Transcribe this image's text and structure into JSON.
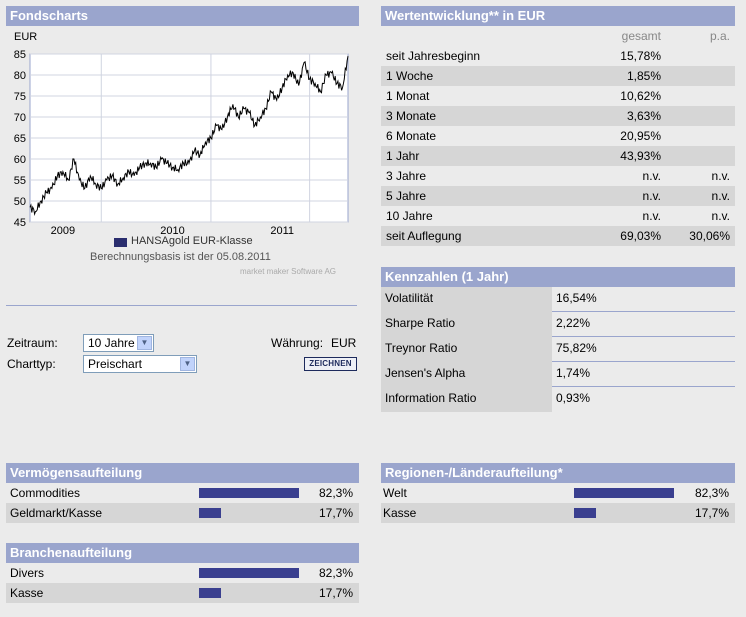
{
  "fondscharts": {
    "title": "Fondscharts",
    "currency_label": "EUR",
    "legend": "HANSAgold EUR-Klasse",
    "basis": "Berechnungsbasis ist der 05.08.2011",
    "credit": "market maker Software AG"
  },
  "chart_data": {
    "type": "line",
    "title": "Fondscharts",
    "ylabel": "EUR",
    "ylim": [
      45,
      85
    ],
    "yticks": [
      45,
      50,
      55,
      60,
      65,
      70,
      75,
      80,
      85
    ],
    "xlim": [
      2008.7,
      2011.6
    ],
    "xticks": [
      {
        "label": "2009",
        "x": 2009.0
      },
      {
        "label": "2010",
        "x": 2010.0
      },
      {
        "label": "2011",
        "x": 2011.0
      }
    ],
    "series": [
      {
        "name": "HANSAgold EUR-Klasse",
        "color": "#000000",
        "x": [
          2008.7,
          2008.75,
          2008.8,
          2008.85,
          2008.9,
          2008.95,
          2009.0,
          2009.05,
          2009.1,
          2009.15,
          2009.2,
          2009.25,
          2009.3,
          2009.35,
          2009.4,
          2009.45,
          2009.5,
          2009.55,
          2009.6,
          2009.65,
          2009.7,
          2009.75,
          2009.8,
          2009.85,
          2009.9,
          2009.95,
          2010.0,
          2010.05,
          2010.1,
          2010.15,
          2010.2,
          2010.25,
          2010.3,
          2010.35,
          2010.4,
          2010.45,
          2010.5,
          2010.55,
          2010.6,
          2010.65,
          2010.7,
          2010.75,
          2010.8,
          2010.85,
          2010.9,
          2010.95,
          2011.0,
          2011.05,
          2011.1,
          2011.15,
          2011.2,
          2011.25,
          2011.3,
          2011.35,
          2011.4,
          2011.45,
          2011.5,
          2011.55,
          2011.6
        ],
        "values": [
          48.5,
          47.5,
          50,
          52,
          53,
          56,
          57,
          55,
          60,
          55,
          53,
          56,
          54,
          53,
          55,
          56,
          54,
          55.5,
          57,
          56,
          58,
          59,
          59,
          58,
          60,
          59,
          58,
          57.5,
          59,
          59,
          62,
          61,
          64,
          65,
          68,
          67,
          70,
          73,
          70,
          72,
          71,
          68,
          70,
          72,
          76,
          74,
          77,
          80,
          80.5,
          77.5,
          83,
          79,
          78,
          76,
          80,
          80.5,
          78,
          77,
          84.5
        ]
      }
    ]
  },
  "form": {
    "zeitraum_label": "Zeitraum:",
    "zeitraum_value": "10 Jahre",
    "waehrung_label": "Währung:",
    "waehrung_value": "EUR",
    "charttyp_label": "Charttyp:",
    "charttyp_value": "Preischart",
    "draw_button": "ZEICHNEN"
  },
  "wertentwicklung": {
    "title": "Wertentwicklung** in EUR",
    "col_total": "gesamt",
    "col_pa": "p.a.",
    "rows": [
      {
        "label": "seit Jahresbeginn",
        "total": "15,78%",
        "pa": ""
      },
      {
        "label": "1 Woche",
        "total": "1,85%",
        "pa": ""
      },
      {
        "label": "1 Monat",
        "total": "10,62%",
        "pa": ""
      },
      {
        "label": "3 Monate",
        "total": "3,63%",
        "pa": ""
      },
      {
        "label": "6 Monate",
        "total": "20,95%",
        "pa": ""
      },
      {
        "label": "1 Jahr",
        "total": "43,93%",
        "pa": ""
      },
      {
        "label": "3 Jahre",
        "total": "n.v.",
        "pa": "n.v."
      },
      {
        "label": "5 Jahre",
        "total": "n.v.",
        "pa": "n.v."
      },
      {
        "label": "10 Jahre",
        "total": "n.v.",
        "pa": "n.v."
      },
      {
        "label": "seit Auflegung",
        "total": "69,03%",
        "pa": "30,06%"
      }
    ]
  },
  "kennzahlen": {
    "title": "Kennzahlen (1 Jahr)",
    "rows": [
      {
        "label": "Volatilität",
        "value": "16,54%"
      },
      {
        "label": "Sharpe Ratio",
        "value": "2,22%"
      },
      {
        "label": "Treynor Ratio",
        "value": "75,82%"
      },
      {
        "label": "Jensen's Alpha",
        "value": "1,74%"
      },
      {
        "label": "Information Ratio",
        "value": "0,93%"
      }
    ]
  },
  "vermoegen": {
    "title": "Vermögensaufteilung",
    "rows": [
      {
        "label": "Commodities",
        "pct": "82,3%",
        "share": 82.3
      },
      {
        "label": "Geldmarkt/Kasse",
        "pct": "17,7%",
        "share": 17.7
      }
    ]
  },
  "regionen": {
    "title": "Regionen-/Länderaufteilung*",
    "rows": [
      {
        "label": "Welt",
        "pct": "82,3%",
        "share": 82.3
      },
      {
        "label": "Kasse",
        "pct": "17,7%",
        "share": 17.7
      }
    ]
  },
  "branchen": {
    "title": "Branchenaufteilung",
    "rows": [
      {
        "label": "Divers",
        "pct": "82,3%",
        "share": 82.3
      },
      {
        "label": "Kasse",
        "pct": "17,7%",
        "share": 17.7
      }
    ]
  },
  "colors": {
    "header": "#9aa5cd",
    "bar": "#3a3f8f",
    "row_alt": "#d6d6d6"
  }
}
